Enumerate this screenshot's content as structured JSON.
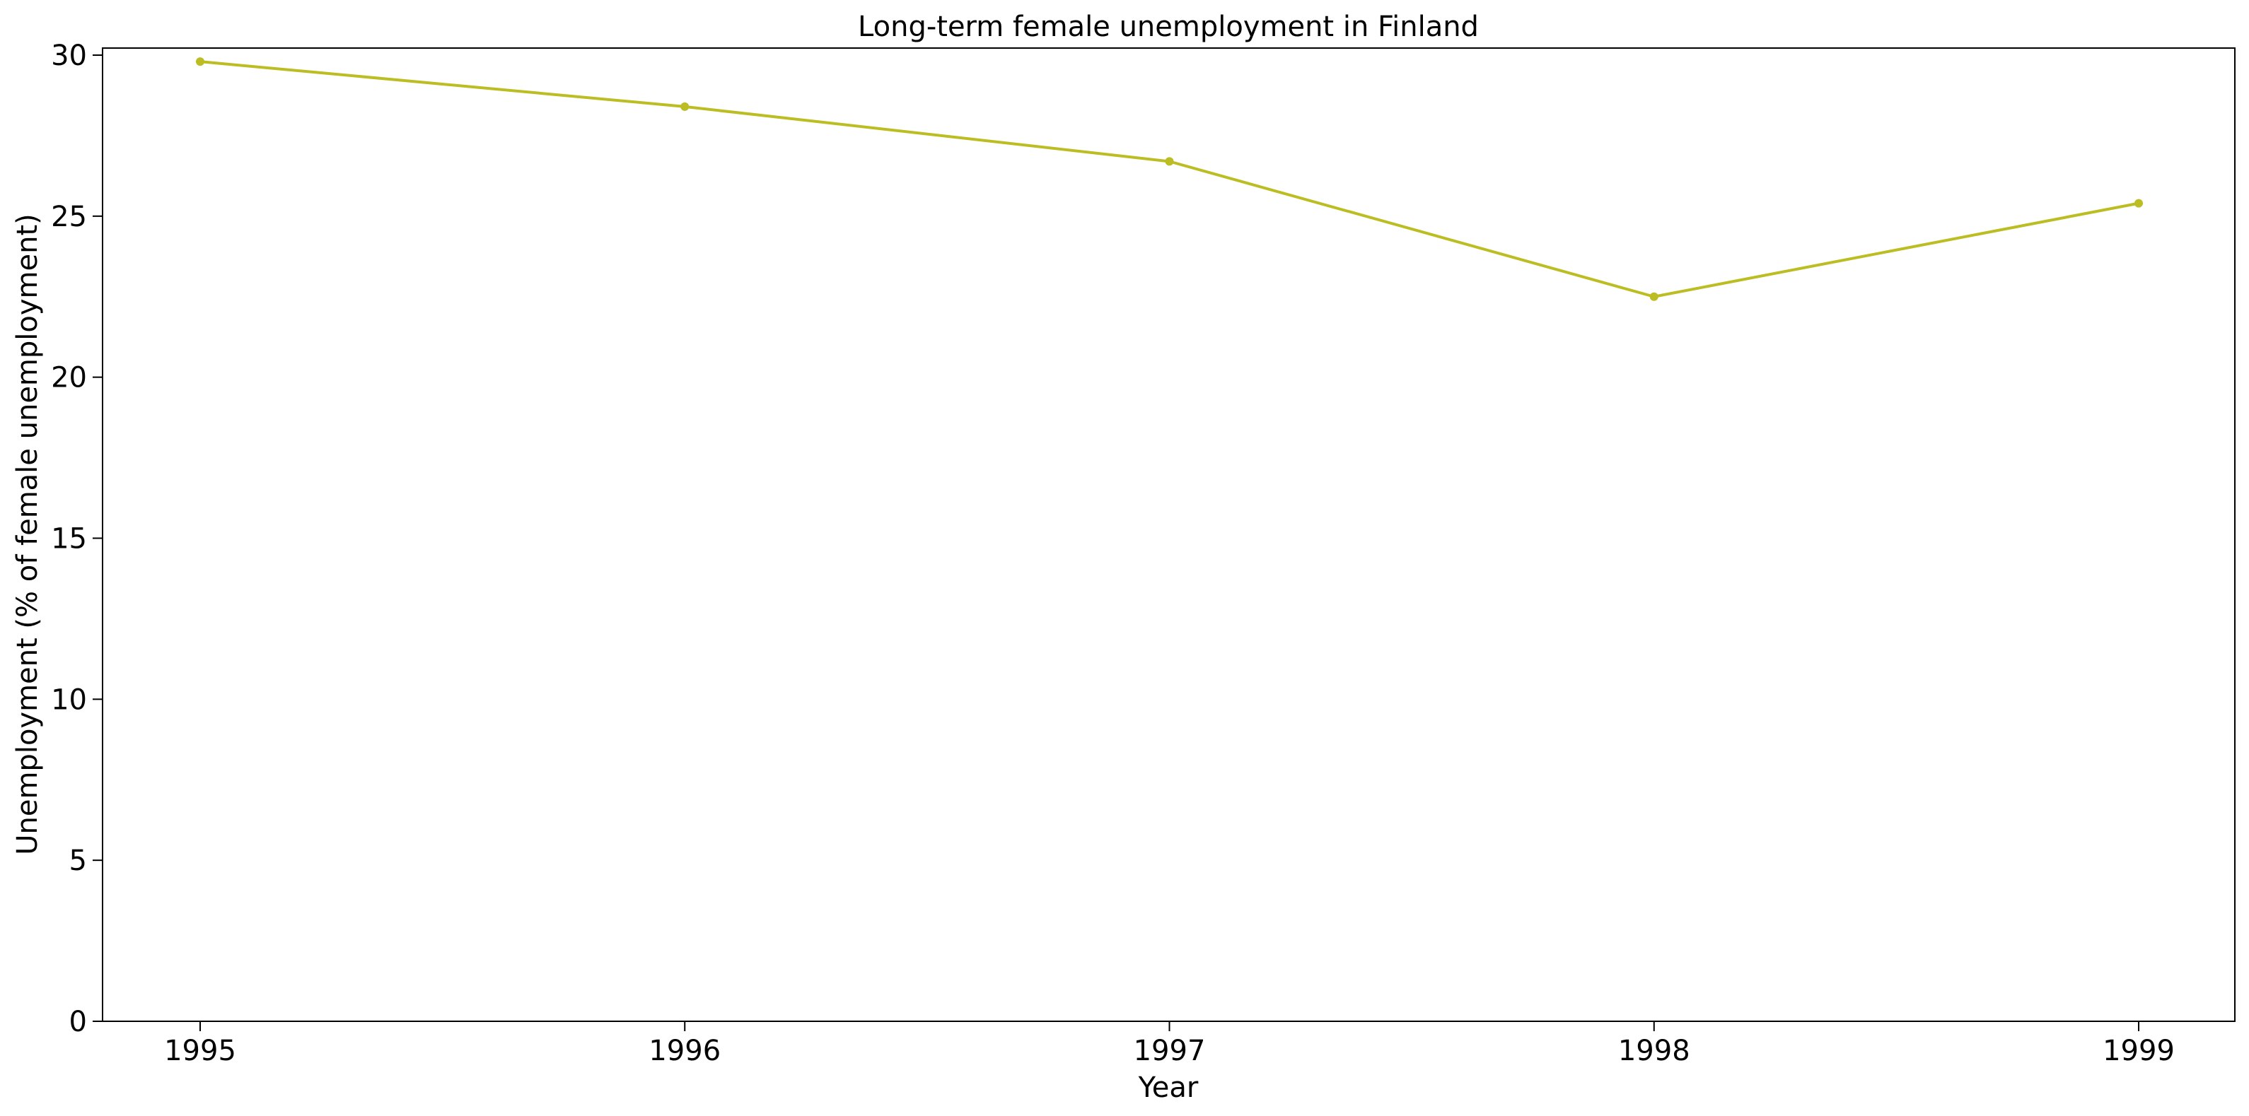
{
  "chart_data": {
    "type": "line",
    "title": "Long-term female unemployment in Finland",
    "xlabel": "Year",
    "ylabel": "Unemployment (% of female unemployment)",
    "x": [
      "1995",
      "1996",
      "1997",
      "1998",
      "1999"
    ],
    "series": [
      {
        "values": [
          29.8,
          28.4,
          26.7,
          22.5,
          25.4
        ],
        "color": "#bcbd22"
      }
    ],
    "ylim": [
      0,
      30
    ],
    "yticks": [
      "0",
      "5",
      "10",
      "15",
      "20",
      "25",
      "30"
    ],
    "grid": false,
    "legend": "none"
  }
}
